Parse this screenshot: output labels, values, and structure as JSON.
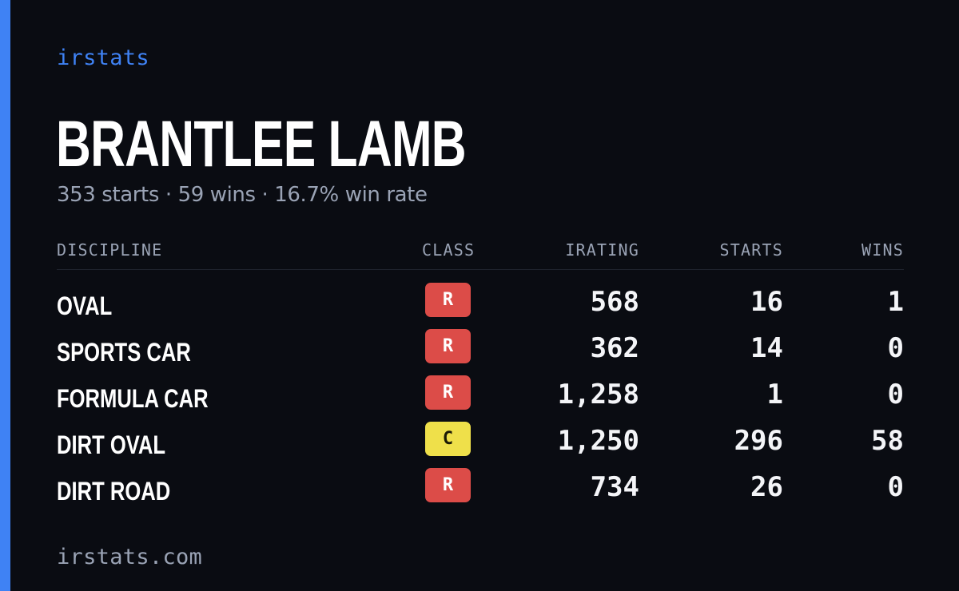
{
  "brand": "irstats",
  "driver": {
    "name": "BRANTLEE LAMB",
    "summary": "353 starts · 59 wins · 16.7% win rate"
  },
  "table": {
    "columns": {
      "discipline": "DISCIPLINE",
      "class": "CLASS",
      "irating": "IRATING",
      "starts": "STARTS",
      "wins": "WINS"
    },
    "rows": [
      {
        "discipline": "OVAL",
        "class": "R",
        "class_color": "#dc4c48",
        "irating": "568",
        "starts": "16",
        "wins": "1"
      },
      {
        "discipline": "SPORTS CAR",
        "class": "R",
        "class_color": "#dc4c48",
        "irating": "362",
        "starts": "14",
        "wins": "0"
      },
      {
        "discipline": "FORMULA CAR",
        "class": "R",
        "class_color": "#dc4c48",
        "irating": "1,258",
        "starts": "1",
        "wins": "0"
      },
      {
        "discipline": "DIRT OVAL",
        "class": "C",
        "class_color": "#efe04a",
        "irating": "1,250",
        "starts": "296",
        "wins": "58"
      },
      {
        "discipline": "DIRT ROAD",
        "class": "R",
        "class_color": "#dc4c48",
        "irating": "734",
        "starts": "26",
        "wins": "0"
      }
    ]
  },
  "footer": "irstats.com",
  "colors": {
    "accent": "#3f82f4",
    "background": "#0a0c12",
    "muted_text": "#9aa3b5",
    "class_r": "#dc4c48",
    "class_c": "#efe04a"
  }
}
